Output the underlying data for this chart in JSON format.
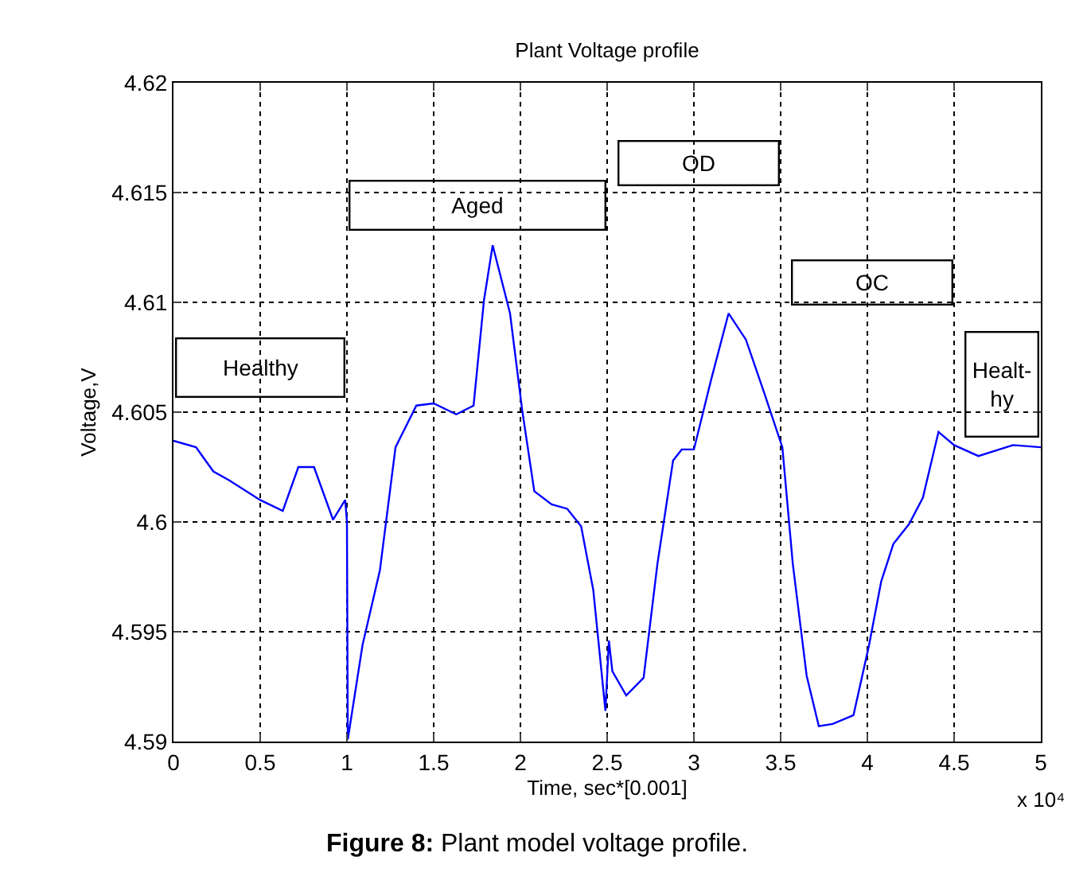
{
  "chart_data": {
    "type": "line",
    "title": "Plant Voltage profile",
    "xlabel": "Time, sec*[0.001]",
    "ylabel": "Voltage,V",
    "x": [
      0,
      0.13,
      0.23,
      0.32,
      0.5,
      0.63,
      0.72,
      0.81,
      0.92,
      0.99,
      1.0,
      1.005,
      1.09,
      1.19,
      1.28,
      1.4,
      1.5,
      1.63,
      1.73,
      1.79,
      1.84,
      1.94,
      2.01,
      2.08,
      2.18,
      2.27,
      2.35,
      2.42,
      2.49,
      2.51,
      2.53,
      2.61,
      2.71,
      2.79,
      2.88,
      2.93,
      3.0,
      3.1,
      3.2,
      3.3,
      3.4,
      3.51,
      3.57,
      3.65,
      3.72,
      3.8,
      3.92,
      4.01,
      4.08,
      4.15,
      4.24,
      4.32,
      4.41,
      4.5,
      4.64,
      4.84,
      5.0
    ],
    "series": [
      {
        "color": "#0000ff",
        "values": [
          4.6037,
          4.6034,
          4.6023,
          4.6019,
          4.601,
          4.6005,
          4.6025,
          4.6025,
          4.6001,
          4.601,
          4.6,
          4.5901,
          4.5944,
          4.5978,
          4.6034,
          4.6053,
          4.6054,
          4.6049,
          4.6053,
          4.6101,
          4.6126,
          4.6095,
          4.6051,
          4.6014,
          4.6008,
          4.6006,
          4.5998,
          4.5969,
          4.5914,
          4.5946,
          4.5932,
          4.5921,
          4.5929,
          4.5981,
          4.6028,
          4.6033,
          4.6033,
          4.6065,
          4.6095,
          4.6083,
          4.606,
          4.6034,
          4.5981,
          4.593,
          4.5907,
          4.5908,
          4.5912,
          4.5944,
          4.5973,
          4.599,
          4.5999,
          4.6011,
          4.6041,
          4.6035,
          4.603,
          4.6035,
          4.6034
        ]
      }
    ],
    "xlim": [
      0,
      5
    ],
    "xticks": [
      0,
      0.5,
      1,
      1.5,
      2,
      2.5,
      3,
      3.5,
      4,
      4.5,
      5
    ],
    "ylim": [
      4.59,
      4.62
    ],
    "yticks": [
      4.59,
      4.595,
      4.6,
      4.605,
      4.61,
      4.615,
      4.62
    ],
    "grid": true,
    "line_style": "solid",
    "marker": "none",
    "annotations": [
      "Healthy",
      "Aged",
      "OD",
      "OC",
      "Healt-\nhy",
      "x 10⁴",
      "Figure 8: Plant model voltage profile."
    ]
  }
}
